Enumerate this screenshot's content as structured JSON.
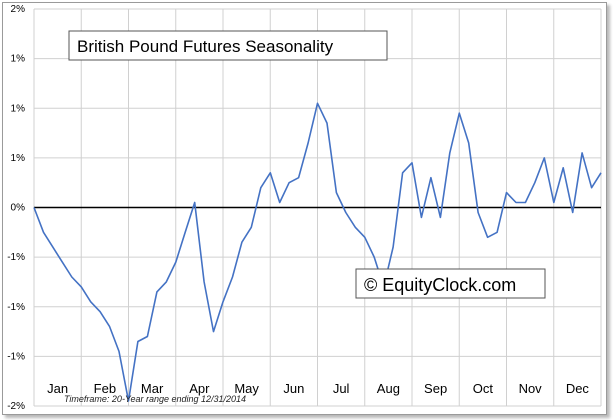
{
  "chart_data": {
    "type": "line",
    "title": "British Pound Futures Seasonality",
    "watermark": "© EquityClock.com",
    "footnote": "Timeframe: 20-Year range ending 12/31/2014",
    "ylim": [
      -0.02,
      0.02
    ],
    "yticks": [
      {
        "value": 0.02,
        "label": "2%"
      },
      {
        "value": 0.015,
        "label": "1%"
      },
      {
        "value": 0.01,
        "label": "1%"
      },
      {
        "value": 0.005,
        "label": "1%"
      },
      {
        "value": 0.0,
        "label": "0%"
      },
      {
        "value": -0.005,
        "label": "-1%"
      },
      {
        "value": -0.01,
        "label": "-1%"
      },
      {
        "value": -0.015,
        "label": "-1%"
      },
      {
        "value": -0.02,
        "label": "-2%"
      }
    ],
    "months": [
      "Jan",
      "Feb",
      "Mar",
      "Apr",
      "May",
      "Jun",
      "Jul",
      "Aug",
      "Sep",
      "Oct",
      "Nov",
      "Dec"
    ],
    "line_color": "#4472c4",
    "series": [
      {
        "x": [
          0.0,
          0.2,
          0.4,
          0.6,
          0.8,
          1.0,
          1.2,
          1.4,
          1.6,
          1.8,
          2.0,
          2.2,
          2.4,
          2.6,
          2.8,
          3.0,
          3.2,
          3.4,
          3.6,
          3.8,
          4.0,
          4.2,
          4.4,
          4.6,
          4.8,
          5.0,
          5.2,
          5.4,
          5.6,
          5.8,
          6.0,
          6.2,
          6.4,
          6.6,
          6.8,
          7.0,
          7.2,
          7.4,
          7.6,
          7.8,
          8.0,
          8.2,
          8.4,
          8.6,
          8.8,
          9.0,
          9.2,
          9.4,
          9.6,
          9.8,
          10.0,
          10.2,
          10.4,
          10.6,
          10.8,
          11.0,
          11.2,
          11.4,
          11.6,
          11.8,
          12.0
        ],
        "values": [
          0.0,
          -0.0025,
          -0.004,
          -0.0055,
          -0.007,
          -0.008,
          -0.0095,
          -0.0105,
          -0.012,
          -0.0145,
          -0.0195,
          -0.0135,
          -0.013,
          -0.0085,
          -0.0075,
          -0.0055,
          -0.0025,
          0.0005,
          -0.0075,
          -0.0125,
          -0.0095,
          -0.007,
          -0.0035,
          -0.002,
          0.002,
          0.0035,
          0.0005,
          0.0025,
          0.003,
          0.0065,
          0.0105,
          0.0085,
          0.0015,
          -0.0005,
          -0.002,
          -0.003,
          -0.005,
          -0.008,
          -0.004,
          0.0035,
          0.0045,
          -0.001,
          0.003,
          -0.001,
          0.0055,
          0.0095,
          0.0065,
          -0.0005,
          -0.003,
          -0.0025,
          0.0015,
          0.0005,
          0.0005,
          0.0025,
          0.005,
          0.0005,
          0.004,
          -0.0005,
          0.0055,
          0.002,
          0.0035
        ]
      }
    ]
  }
}
